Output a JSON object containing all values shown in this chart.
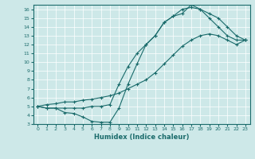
{
  "xlabel": "Humidex (Indice chaleur)",
  "ylabel": "",
  "bg_color": "#cde8e8",
  "line_color": "#1a6b6b",
  "marker": "+",
  "xlim": [
    -0.5,
    23.5
  ],
  "ylim": [
    3,
    16.5
  ],
  "xticks": [
    0,
    1,
    2,
    3,
    4,
    5,
    6,
    7,
    8,
    9,
    10,
    11,
    12,
    13,
    14,
    15,
    16,
    17,
    18,
    19,
    20,
    21,
    22,
    23
  ],
  "yticks": [
    3,
    4,
    5,
    6,
    7,
    8,
    9,
    10,
    11,
    12,
    13,
    14,
    15,
    16
  ],
  "lines": [
    {
      "x": [
        0,
        1,
        2,
        3,
        4,
        5,
        6,
        7,
        8,
        9,
        10,
        11,
        12,
        13,
        14,
        15,
        16,
        17,
        18,
        19,
        20,
        21,
        22,
        23
      ],
      "y": [
        5.0,
        4.8,
        4.8,
        4.3,
        4.2,
        3.8,
        3.3,
        3.2,
        3.2,
        4.8,
        7.5,
        9.8,
        12.0,
        13.0,
        14.5,
        15.2,
        15.5,
        16.5,
        16.0,
        15.0,
        14.0,
        13.0,
        12.5,
        12.5
      ]
    },
    {
      "x": [
        0,
        1,
        2,
        3,
        4,
        5,
        6,
        7,
        8,
        9,
        10,
        11,
        12,
        13,
        14,
        15,
        16,
        17,
        18,
        19,
        20,
        21,
        22,
        23
      ],
      "y": [
        5.0,
        4.8,
        4.8,
        4.8,
        4.8,
        4.8,
        5.0,
        5.0,
        5.2,
        7.5,
        9.5,
        11.0,
        12.0,
        13.0,
        14.5,
        15.2,
        16.0,
        16.2,
        16.0,
        15.5,
        15.0,
        14.0,
        13.0,
        12.5
      ]
    },
    {
      "x": [
        0,
        1,
        2,
        3,
        4,
        5,
        6,
        7,
        8,
        9,
        10,
        11,
        12,
        13,
        14,
        15,
        16,
        17,
        18,
        19,
        20,
        21,
        22,
        23
      ],
      "y": [
        5.0,
        5.2,
        5.3,
        5.5,
        5.5,
        5.7,
        5.8,
        6.0,
        6.2,
        6.5,
        7.0,
        7.5,
        8.0,
        8.8,
        9.8,
        10.8,
        11.8,
        12.5,
        13.0,
        13.2,
        13.0,
        12.5,
        12.0,
        12.5
      ]
    }
  ]
}
